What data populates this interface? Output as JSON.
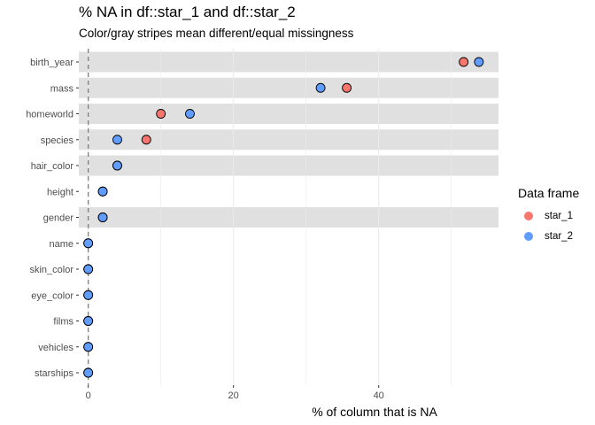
{
  "chart_data": {
    "type": "scatter",
    "title": "% NA in df::star_1 and df::star_2",
    "subtitle": "Color/gray stripes mean different/equal missingness",
    "xlabel": "% of column that is NA",
    "ylabel": "",
    "xlim": [
      -1.3,
      56.5
    ],
    "x_ticks": [
      0,
      20,
      40
    ],
    "categories": [
      "birth_year",
      "mass",
      "homeworld",
      "species",
      "hair_color",
      "height",
      "gender",
      "name",
      "skin_color",
      "eye_color",
      "films",
      "vehicles",
      "starships"
    ],
    "stripes": [
      true,
      true,
      true,
      true,
      true,
      false,
      true,
      false,
      false,
      false,
      false,
      false,
      false
    ],
    "reference_line_x": 0,
    "grid": true,
    "legend_title": "Data frame",
    "legend_position": "right",
    "series": [
      {
        "name": "star_1",
        "color": "#F8766D",
        "values": [
          51.7,
          35.6,
          10.0,
          8.0,
          4.0,
          2.0,
          2.0,
          0,
          0,
          0,
          0,
          0,
          0
        ]
      },
      {
        "name": "star_2",
        "color": "#619CFF",
        "values": [
          53.8,
          32.0,
          14.0,
          4.0,
          4.0,
          2.0,
          2.0,
          0,
          0,
          0,
          0,
          0,
          0
        ]
      }
    ]
  }
}
